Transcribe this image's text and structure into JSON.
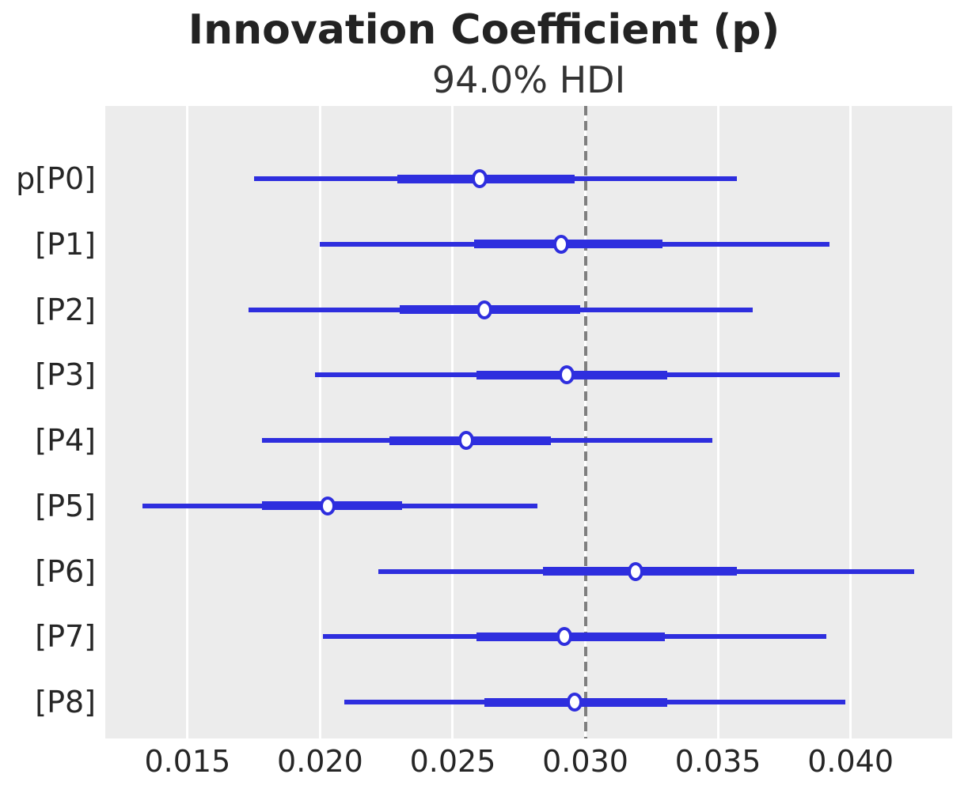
{
  "title": "Innovation Coefficient (p)",
  "subtitle": "94.0% HDI",
  "colors": {
    "line": "#2e2ede",
    "marker_fill": "#ffffff",
    "reference_line": "#7f7f7f",
    "plot_background": "#ececec",
    "gridline": "#ffffff",
    "text": "#262626"
  },
  "chart_data": {
    "type": "forest",
    "title": "Innovation Coefficient (p)",
    "subtitle": "94.0% HDI",
    "hdi_probability": "94.0%",
    "xlim": [
      0.0119,
      0.04383
    ],
    "xticks": [
      0.015,
      0.02,
      0.025,
      0.03,
      0.035,
      0.04
    ],
    "xtick_labels": [
      "0.015",
      "0.020",
      "0.025",
      "0.030",
      "0.035",
      "0.040"
    ],
    "reference_value": 0.03,
    "grid": "vertical-white",
    "legend_position": "none",
    "rows": [
      {
        "label": "p[P0]",
        "hdi_low": 0.0175,
        "quartile_low": 0.0229,
        "median": 0.026,
        "quartile_high": 0.0296,
        "hdi_high": 0.0357
      },
      {
        "label": "[P1]",
        "hdi_low": 0.02,
        "quartile_low": 0.0258,
        "median": 0.0291,
        "quartile_high": 0.0329,
        "hdi_high": 0.0392
      },
      {
        "label": "[P2]",
        "hdi_low": 0.0173,
        "quartile_low": 0.023,
        "median": 0.0262,
        "quartile_high": 0.0298,
        "hdi_high": 0.0363
      },
      {
        "label": "[P3]",
        "hdi_low": 0.0198,
        "quartile_low": 0.0259,
        "median": 0.0293,
        "quartile_high": 0.0331,
        "hdi_high": 0.0396
      },
      {
        "label": "[P4]",
        "hdi_low": 0.0178,
        "quartile_low": 0.0226,
        "median": 0.0255,
        "quartile_high": 0.0287,
        "hdi_high": 0.0348
      },
      {
        "label": "[P5]",
        "hdi_low": 0.0133,
        "quartile_low": 0.0178,
        "median": 0.0203,
        "quartile_high": 0.0231,
        "hdi_high": 0.0282
      },
      {
        "label": "[P6]",
        "hdi_low": 0.0222,
        "quartile_low": 0.0284,
        "median": 0.0319,
        "quartile_high": 0.0357,
        "hdi_high": 0.0424
      },
      {
        "label": "[P7]",
        "hdi_low": 0.0201,
        "quartile_low": 0.0259,
        "median": 0.0292,
        "quartile_high": 0.033,
        "hdi_high": 0.0391
      },
      {
        "label": "[P8]",
        "hdi_low": 0.0209,
        "quartile_low": 0.0262,
        "median": 0.0296,
        "quartile_high": 0.0331,
        "hdi_high": 0.0398
      }
    ]
  }
}
